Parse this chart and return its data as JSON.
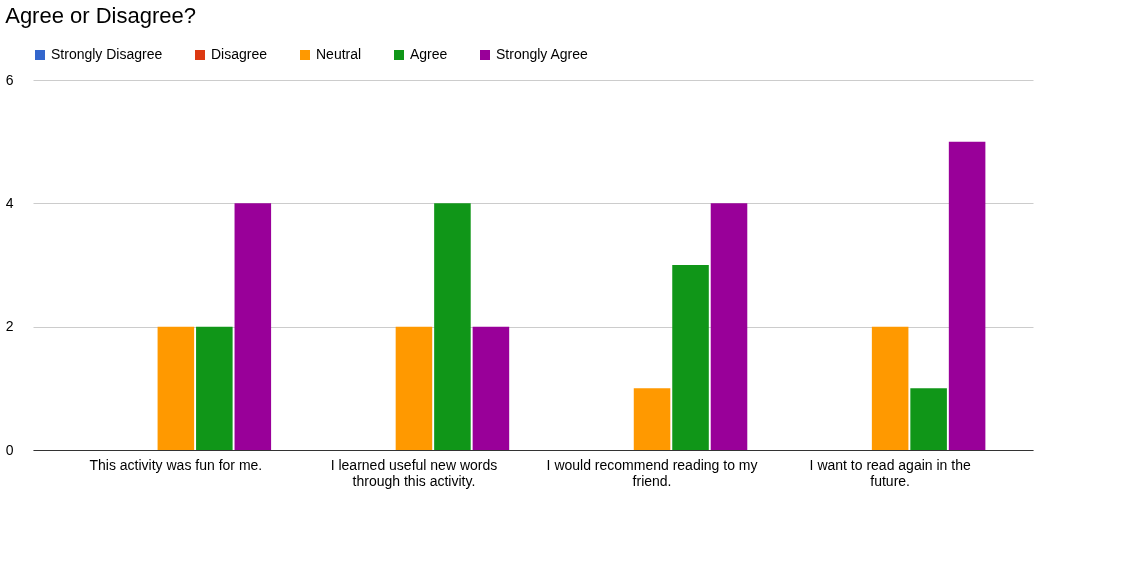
{
  "chart_data": {
    "type": "bar",
    "title": "Agree or Disagree?",
    "categories": [
      "This activity was fun for me.",
      "I learned useful new words through this activity.",
      "I would recommend reading to my friend.",
      "I want to read again in the future."
    ],
    "series": [
      {
        "name": "Strongly Disagree",
        "color": "#3366cc",
        "values": [
          0,
          0,
          0,
          0
        ]
      },
      {
        "name": "Disagree",
        "color": "#dc3912",
        "values": [
          0,
          0,
          0,
          0
        ]
      },
      {
        "name": "Neutral",
        "color": "#ff9900",
        "values": [
          2,
          2,
          1,
          2
        ]
      },
      {
        "name": "Agree",
        "color": "#109618",
        "values": [
          2,
          4,
          3,
          1
        ]
      },
      {
        "name": "Strongly Agree",
        "color": "#990099",
        "values": [
          4,
          2,
          4,
          5
        ]
      }
    ],
    "ylim": [
      0,
      6
    ],
    "yticks": [
      0,
      2,
      4,
      6
    ],
    "grid": "y",
    "legend": "top"
  }
}
